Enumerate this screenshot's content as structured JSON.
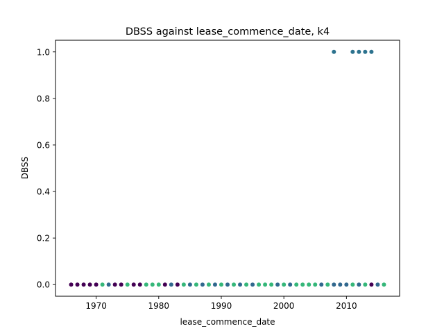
{
  "chart_data": {
    "type": "scatter",
    "title": "DBSS against lease_commence_date, k4",
    "xlabel": "lease_commence_date",
    "ylabel": "DBSS",
    "xlim": [
      1963.5,
      2018.5
    ],
    "ylim": [
      -0.05,
      1.05
    ],
    "xticks": [
      1970,
      1980,
      1990,
      2000,
      2010
    ],
    "yticks": [
      0.0,
      0.2,
      0.4,
      0.6,
      0.8,
      1.0
    ],
    "ytick_labels": [
      "0.0",
      "0.2",
      "0.4",
      "0.6",
      "0.8",
      "1.0"
    ],
    "grid": false,
    "legend": "none",
    "cluster_colors": {
      "0": "#440154",
      "1": "#31688e",
      "2": "#35b779",
      "3": "#2c728e"
    },
    "points": [
      {
        "x": 1966,
        "y": 0,
        "c": "0"
      },
      {
        "x": 1967,
        "y": 0,
        "c": "0"
      },
      {
        "x": 1968,
        "y": 0,
        "c": "0"
      },
      {
        "x": 1969,
        "y": 0,
        "c": "0"
      },
      {
        "x": 1970,
        "y": 0,
        "c": "0"
      },
      {
        "x": 1971,
        "y": 0,
        "c": "2"
      },
      {
        "x": 1972,
        "y": 0,
        "c": "1"
      },
      {
        "x": 1973,
        "y": 0,
        "c": "0"
      },
      {
        "x": 1974,
        "y": 0,
        "c": "0"
      },
      {
        "x": 1975,
        "y": 0,
        "c": "2"
      },
      {
        "x": 1976,
        "y": 0,
        "c": "0"
      },
      {
        "x": 1977,
        "y": 0,
        "c": "0"
      },
      {
        "x": 1978,
        "y": 0,
        "c": "2"
      },
      {
        "x": 1979,
        "y": 0,
        "c": "2"
      },
      {
        "x": 1980,
        "y": 0,
        "c": "2"
      },
      {
        "x": 1981,
        "y": 0,
        "c": "0"
      },
      {
        "x": 1982,
        "y": 0,
        "c": "1"
      },
      {
        "x": 1983,
        "y": 0,
        "c": "0"
      },
      {
        "x": 1984,
        "y": 0,
        "c": "2"
      },
      {
        "x": 1985,
        "y": 0,
        "c": "1"
      },
      {
        "x": 1986,
        "y": 0,
        "c": "2"
      },
      {
        "x": 1987,
        "y": 0,
        "c": "1"
      },
      {
        "x": 1988,
        "y": 0,
        "c": "2"
      },
      {
        "x": 1989,
        "y": 0,
        "c": "1"
      },
      {
        "x": 1990,
        "y": 0,
        "c": "2"
      },
      {
        "x": 1991,
        "y": 0,
        "c": "1"
      },
      {
        "x": 1992,
        "y": 0,
        "c": "2"
      },
      {
        "x": 1993,
        "y": 0,
        "c": "1"
      },
      {
        "x": 1994,
        "y": 0,
        "c": "2"
      },
      {
        "x": 1995,
        "y": 0,
        "c": "1"
      },
      {
        "x": 1996,
        "y": 0,
        "c": "2"
      },
      {
        "x": 1997,
        "y": 0,
        "c": "2"
      },
      {
        "x": 1998,
        "y": 0,
        "c": "2"
      },
      {
        "x": 1999,
        "y": 0,
        "c": "1"
      },
      {
        "x": 2000,
        "y": 0,
        "c": "2"
      },
      {
        "x": 2001,
        "y": 0,
        "c": "1"
      },
      {
        "x": 2002,
        "y": 0,
        "c": "2"
      },
      {
        "x": 2003,
        "y": 0,
        "c": "2"
      },
      {
        "x": 2004,
        "y": 0,
        "c": "2"
      },
      {
        "x": 2005,
        "y": 0,
        "c": "2"
      },
      {
        "x": 2006,
        "y": 0,
        "c": "1"
      },
      {
        "x": 2007,
        "y": 0,
        "c": "2"
      },
      {
        "x": 2008,
        "y": 0,
        "c": "1"
      },
      {
        "x": 2009,
        "y": 0,
        "c": "1"
      },
      {
        "x": 2010,
        "y": 0,
        "c": "1"
      },
      {
        "x": 2011,
        "y": 0,
        "c": "2"
      },
      {
        "x": 2012,
        "y": 0,
        "c": "1"
      },
      {
        "x": 2013,
        "y": 0,
        "c": "2"
      },
      {
        "x": 2014,
        "y": 0,
        "c": "0"
      },
      {
        "x": 2015,
        "y": 0,
        "c": "1"
      },
      {
        "x": 2016,
        "y": 0,
        "c": "2"
      },
      {
        "x": 2008,
        "y": 1,
        "c": "3"
      },
      {
        "x": 2011,
        "y": 1,
        "c": "3"
      },
      {
        "x": 2012,
        "y": 1,
        "c": "3"
      },
      {
        "x": 2013,
        "y": 1,
        "c": "3"
      },
      {
        "x": 2014,
        "y": 1,
        "c": "3"
      }
    ]
  }
}
